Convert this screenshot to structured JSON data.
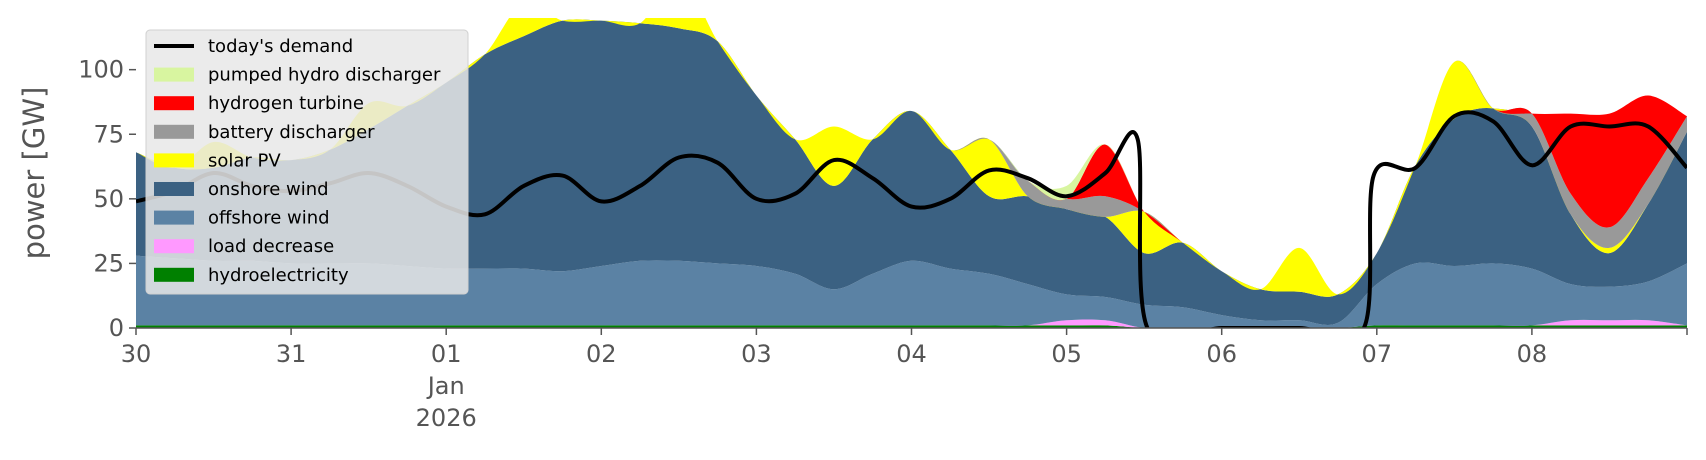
{
  "chart_data": {
    "type": "area",
    "title": "",
    "ylabel": "power [GW]",
    "xlabel": "",
    "ylim": [
      0,
      120
    ],
    "xlim": [
      "2025-12-30T00:00",
      "2026-01-09T00:00"
    ],
    "yticks": [
      0,
      25,
      50,
      75,
      100
    ],
    "xticks": [
      {
        "x": "2025-12-30T00:00",
        "label": "30",
        "sub": []
      },
      {
        "x": "2025-12-31T00:00",
        "label": "31",
        "sub": []
      },
      {
        "x": "2026-01-01T00:00",
        "label": "01",
        "sub": [
          "Jan",
          "2026"
        ]
      },
      {
        "x": "2026-01-02T00:00",
        "label": "02",
        "sub": []
      },
      {
        "x": "2026-01-03T00:00",
        "label": "03",
        "sub": []
      },
      {
        "x": "2026-01-04T00:00",
        "label": "04",
        "sub": []
      },
      {
        "x": "2026-01-05T00:00",
        "label": "05",
        "sub": []
      },
      {
        "x": "2026-01-06T00:00",
        "label": "06",
        "sub": []
      },
      {
        "x": "2026-01-07T00:00",
        "label": "07",
        "sub": []
      },
      {
        "x": "2026-01-08T00:00",
        "label": "08",
        "sub": []
      }
    ],
    "grid": false,
    "legend_position": "upper-left",
    "legend": [
      {
        "label": "today's demand",
        "kind": "line",
        "color": "#000000"
      },
      {
        "label": "pumped hydro discharger",
        "kind": "patch",
        "color": "#d8f5a0"
      },
      {
        "label": "hydrogen turbine",
        "kind": "patch",
        "color": "#ff0000"
      },
      {
        "label": "battery discharger",
        "kind": "patch",
        "color": "#999999"
      },
      {
        "label": "solar PV",
        "kind": "patch",
        "color": "#ffff00"
      },
      {
        "label": "onshore wind",
        "kind": "patch",
        "color": "#3b6182"
      },
      {
        "label": "offshore wind",
        "kind": "patch",
        "color": "#5b82a4"
      },
      {
        "label": "load decrease",
        "kind": "patch",
        "color": "#ff99ff"
      },
      {
        "label": "hydroelectricity",
        "kind": "patch",
        "color": "#008000"
      }
    ],
    "x": [
      "2025-12-30T00:00",
      "2025-12-30T06:00",
      "2025-12-30T12:00",
      "2025-12-30T18:00",
      "2025-12-31T00:00",
      "2025-12-31T06:00",
      "2025-12-31T12:00",
      "2025-12-31T18:00",
      "2026-01-01T00:00",
      "2026-01-01T06:00",
      "2026-01-01T12:00",
      "2026-01-01T18:00",
      "2026-01-02T00:00",
      "2026-01-02T06:00",
      "2026-01-02T12:00",
      "2026-01-02T18:00",
      "2026-01-03T00:00",
      "2026-01-03T06:00",
      "2026-01-03T12:00",
      "2026-01-03T18:00",
      "2026-01-04T00:00",
      "2026-01-04T06:00",
      "2026-01-04T12:00",
      "2026-01-04T18:00",
      "2026-01-05T00:00",
      "2026-01-05T06:00",
      "2026-01-05T12:00",
      "2026-01-05T18:00",
      "2026-01-06T00:00",
      "2026-01-06T06:00",
      "2026-01-06T12:00",
      "2026-01-06T18:00",
      "2026-01-07T00:00",
      "2026-01-07T06:00",
      "2026-01-07T12:00",
      "2026-01-07T18:00",
      "2026-01-08T00:00",
      "2026-01-08T06:00",
      "2026-01-08T12:00",
      "2026-01-08T18:00",
      "2026-01-09T00:00"
    ],
    "series": [
      {
        "name": "hydroelectricity",
        "color": "#008000",
        "values": [
          1,
          1,
          1,
          1,
          1,
          1,
          1,
          1,
          1,
          1,
          1,
          1,
          1,
          1,
          1,
          1,
          1,
          1,
          1,
          1,
          1,
          1,
          1,
          1,
          1,
          1,
          0,
          0,
          0,
          0,
          0,
          0,
          1,
          1,
          1,
          1,
          1,
          1,
          1,
          1,
          1
        ]
      },
      {
        "name": "load decrease",
        "color": "#ff99ff",
        "values": [
          0,
          0,
          0,
          0,
          0,
          0,
          0,
          0,
          0,
          0,
          0,
          0,
          0,
          0,
          0,
          0,
          0,
          0,
          0,
          0,
          0,
          0,
          0,
          0,
          2,
          2,
          0,
          0,
          0,
          0,
          0,
          0,
          0,
          0,
          0,
          0,
          0,
          2,
          2,
          2,
          0
        ]
      },
      {
        "name": "offshore wind",
        "color": "#5b82a4",
        "values": [
          27,
          26,
          25,
          25,
          24,
          24,
          24,
          23,
          22,
          22,
          22,
          21,
          23,
          25,
          25,
          24,
          23,
          20,
          14,
          20,
          25,
          22,
          20,
          16,
          10,
          9,
          9,
          8,
          5,
          3,
          3,
          2,
          16,
          24,
          23,
          24,
          22,
          14,
          13,
          15,
          24
        ]
      },
      {
        "name": "onshore wind",
        "color": "#3b6182",
        "values": [
          40,
          35,
          36,
          40,
          40,
          44,
          52,
          62,
          72,
          83,
          90,
          97,
          95,
          92,
          90,
          86,
          66,
          52,
          40,
          52,
          58,
          46,
          30,
          34,
          33,
          31,
          20,
          25,
          17,
          12,
          11,
          11,
          12,
          38,
          57,
          60,
          55,
          27,
          13,
          30,
          51
        ]
      },
      {
        "name": "solar PV",
        "color": "#ffff00",
        "values": [
          0,
          0,
          10,
          0,
          0,
          0,
          10,
          0,
          0,
          0,
          13,
          0,
          0,
          0,
          20,
          0,
          0,
          0,
          23,
          0,
          0,
          0,
          22,
          0,
          0,
          0,
          16,
          0,
          0,
          0,
          17,
          0,
          0,
          0,
          22,
          0,
          0,
          0,
          2,
          0,
          0
        ]
      },
      {
        "name": "battery discharger",
        "color": "#999999",
        "values": [
          0,
          0,
          0,
          0,
          0,
          0,
          0,
          0,
          0,
          0,
          0,
          0,
          0,
          0,
          0,
          0,
          0,
          0,
          0,
          0,
          0,
          0,
          0,
          6,
          4,
          8,
          0,
          0,
          0,
          0,
          0,
          0,
          0,
          0,
          0,
          0,
          5,
          8,
          8,
          10,
          6
        ]
      },
      {
        "name": "hydrogen turbine",
        "color": "#ff0000",
        "values": [
          0,
          0,
          0,
          0,
          0,
          0,
          0,
          0,
          0,
          0,
          0,
          0,
          0,
          0,
          0,
          0,
          0,
          0,
          0,
          0,
          0,
          0,
          0,
          0,
          0,
          20,
          0,
          0,
          0,
          0,
          0,
          0,
          0,
          0,
          0,
          0,
          0,
          31,
          44,
          32,
          0
        ]
      },
      {
        "name": "pumped hydro discharger",
        "color": "#d8f5a0",
        "values": [
          0,
          0,
          0,
          0,
          0,
          0,
          0,
          0,
          0,
          0,
          0,
          0,
          0,
          0,
          0,
          0,
          0,
          0,
          0,
          0,
          0,
          0,
          0,
          0,
          5,
          0,
          0,
          0,
          0,
          0,
          0,
          0,
          0,
          0,
          0,
          0,
          0,
          0,
          0,
          0,
          0
        ]
      }
    ],
    "demand": {
      "name": "today's demand",
      "color": "#000000",
      "x": [
        "2025-12-30T00:00",
        "2025-12-30T06:00",
        "2025-12-30T12:00",
        "2025-12-30T18:00",
        "2025-12-31T00:00",
        "2025-12-31T06:00",
        "2025-12-31T12:00",
        "2025-12-31T18:00",
        "2026-01-01T00:00",
        "2026-01-01T06:00",
        "2026-01-01T12:00",
        "2026-01-01T18:00",
        "2026-01-02T00:00",
        "2026-01-02T06:00",
        "2026-01-02T12:00",
        "2026-01-02T18:00",
        "2026-01-03T00:00",
        "2026-01-03T06:00",
        "2026-01-03T12:00",
        "2026-01-03T18:00",
        "2026-01-04T00:00",
        "2026-01-04T06:00",
        "2026-01-04T12:00",
        "2026-01-04T18:00",
        "2026-01-05T00:00",
        "2026-01-05T06:00",
        "2026-01-05T11:00",
        "2026-01-05T12:30",
        "2026-01-06T00:00",
        "2026-01-06T12:00",
        "2026-01-06T22:00",
        "2026-01-06T23:30",
        "2026-01-07T06:00",
        "2026-01-07T12:00",
        "2026-01-07T18:00",
        "2026-01-08T00:00",
        "2026-01-08T06:00",
        "2026-01-08T12:00",
        "2026-01-08T18:00",
        "2026-01-09T00:00"
      ],
      "values": [
        49,
        53,
        60,
        55,
        53,
        56,
        60,
        55,
        47,
        44,
        55,
        59,
        49,
        55,
        66,
        64,
        50,
        52,
        65,
        58,
        47,
        50,
        61,
        58,
        51,
        60,
        73,
        0,
        0,
        0,
        0,
        59,
        62,
        82,
        80,
        63,
        78,
        78,
        78,
        62
      ]
    }
  }
}
